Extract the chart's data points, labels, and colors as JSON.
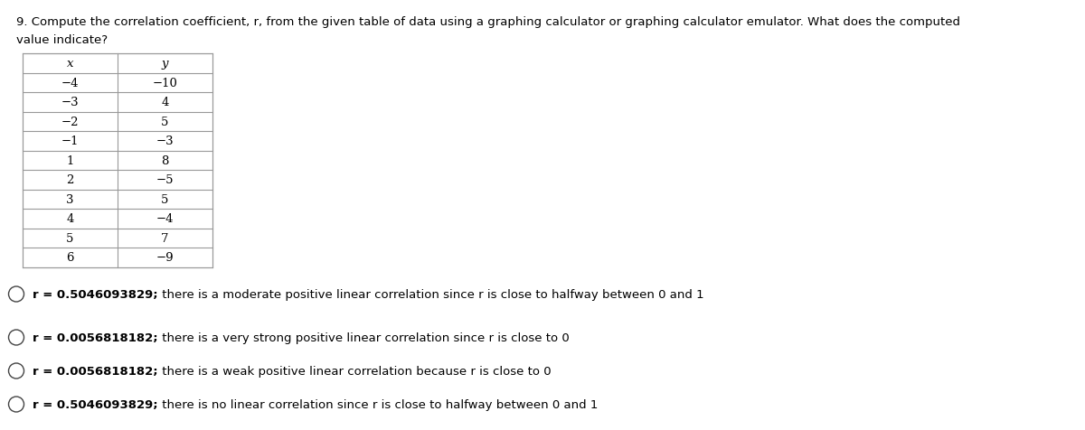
{
  "question_line1": "9. Compute the correlation coefficient, r, from the given table of data using a graphing calculator or graphing calculator emulator. What does the computed",
  "question_line2": "value indicate?",
  "table_headers": [
    "x",
    "y"
  ],
  "table_data": [
    [
      "−4",
      "−10"
    ],
    [
      "−3",
      "4"
    ],
    [
      "−2",
      "5"
    ],
    [
      "−1",
      "−3"
    ],
    [
      "1",
      "8"
    ],
    [
      "2",
      "−5"
    ],
    [
      "3",
      "5"
    ],
    [
      "4",
      "−4"
    ],
    [
      "5",
      "7"
    ],
    [
      "6",
      "−9"
    ]
  ],
  "option_bold_parts": [
    "r = 0.5046093829;",
    "r = 0.0056818182;",
    "r = 0.0056818182;",
    "r = 0.5046093829;"
  ],
  "option_regular_parts": [
    " there is a moderate positive linear correlation since r is close to halfway between 0 and 1",
    " there is a very strong positive linear correlation since r is close to 0",
    " there is a weak positive linear correlation because r is close to 0",
    " there is no linear correlation since r is close to halfway between 0 and 1"
  ],
  "bg_color": "#ffffff",
  "text_color": "#000000",
  "table_border_color": "#999999",
  "font_size_question": 9.5,
  "font_size_table": 9.5,
  "font_size_options": 9.5,
  "fig_width": 12.0,
  "fig_height": 4.77,
  "dpi": 100
}
